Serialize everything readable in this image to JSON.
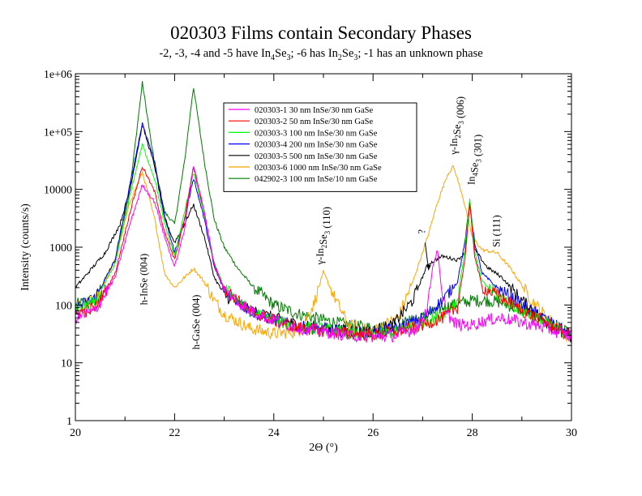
{
  "chart_data": {
    "type": "line",
    "title": "020303 Films contain Secondary Phases",
    "subtitle_parts": [
      {
        "t": "-2, -3, -4 and -5 have In"
      },
      {
        "t": "4",
        "sub": true
      },
      {
        "t": "Se"
      },
      {
        "t": "3",
        "sub": true
      },
      {
        "t": "; -6 has In"
      },
      {
        "t": "2",
        "sub": true
      },
      {
        "t": "Se"
      },
      {
        "t": "3",
        "sub": true
      },
      {
        "t": "; -1 has an unknown phase"
      }
    ],
    "xlabel": "2Θ (°)",
    "ylabel": "Intensity (counts/s)",
    "xlim": [
      20,
      30
    ],
    "ylim": [
      1,
      1000000
    ],
    "yscale": "log",
    "x_ticks": [
      "20",
      "22",
      "24",
      "26",
      "28",
      "30"
    ],
    "y_ticks": [
      "1",
      "10",
      "100",
      "1000",
      "10000",
      "1e+05",
      "1e+06"
    ],
    "grid": false,
    "legend_position": "top-center",
    "series": [
      {
        "name": "020303-1 30 nm InSe/30 nm GaSe",
        "color": "#ff00ff",
        "x": [
          20.0,
          20.4,
          20.8,
          21.1,
          21.35,
          21.6,
          21.8,
          22.0,
          22.2,
          22.38,
          22.6,
          22.8,
          23.0,
          23.5,
          24,
          24.5,
          25,
          25.5,
          26,
          26.5,
          26.9,
          27.1,
          27.2,
          27.3,
          27.4,
          27.6,
          27.8,
          28.0,
          28.3,
          28.6,
          29.0,
          29.5,
          30.0
        ],
        "y": [
          60,
          80,
          300,
          2500,
          12000,
          6000,
          1500,
          450,
          2000,
          27000,
          4000,
          500,
          180,
          80,
          55,
          40,
          35,
          30,
          28,
          30,
          40,
          90,
          450,
          900,
          120,
          50,
          45,
          45,
          55,
          60,
          50,
          40,
          28
        ]
      },
      {
        "name": "020303-2 50 nm InSe/30 nm GaSe",
        "color": "#ff0000",
        "x": [
          20.0,
          20.4,
          20.8,
          21.1,
          21.35,
          21.6,
          21.8,
          22.0,
          22.2,
          22.38,
          22.6,
          22.8,
          23.0,
          23.5,
          24,
          24.5,
          25,
          25.5,
          26,
          26.5,
          27.0,
          27.4,
          27.7,
          27.85,
          27.95,
          28.05,
          28.2,
          28.5,
          29.0,
          29.5,
          30.0
        ],
        "y": [
          70,
          90,
          350,
          4000,
          25000,
          9000,
          1800,
          600,
          3000,
          25000,
          4000,
          500,
          200,
          80,
          55,
          40,
          35,
          32,
          30,
          35,
          45,
          60,
          90,
          600,
          5500,
          700,
          200,
          150,
          80,
          50,
          30
        ]
      },
      {
        "name": "020303-3 100 nm InSe/30 nm GaSe",
        "color": "#00ff00",
        "x": [
          20.0,
          20.4,
          20.8,
          21.1,
          21.35,
          21.6,
          21.8,
          22.0,
          22.2,
          22.38,
          22.6,
          22.8,
          23.0,
          23.5,
          24,
          24.5,
          25,
          25.5,
          26,
          26.5,
          27.0,
          27.4,
          27.7,
          27.85,
          27.95,
          28.05,
          28.2,
          28.5,
          29.0,
          29.5,
          30.0
        ],
        "y": [
          80,
          110,
          500,
          8000,
          60000,
          15000,
          2500,
          700,
          4000,
          20000,
          3500,
          500,
          200,
          80,
          55,
          42,
          38,
          33,
          30,
          35,
          50,
          70,
          120,
          900,
          7000,
          800,
          250,
          150,
          80,
          50,
          28
        ]
      },
      {
        "name": "020303-4 200 nm InSe/30 nm GaSe",
        "color": "#0000ff",
        "x": [
          20.0,
          20.4,
          20.8,
          21.1,
          21.35,
          21.6,
          21.8,
          22.0,
          22.2,
          22.38,
          22.6,
          22.8,
          23.0,
          23.5,
          24,
          24.5,
          25,
          25.5,
          26,
          26.5,
          27.0,
          27.4,
          27.7,
          27.85,
          27.95,
          28.05,
          28.2,
          28.5,
          29.0,
          29.5,
          30.0
        ],
        "y": [
          90,
          130,
          600,
          12000,
          140000,
          30000,
          3500,
          800,
          3000,
          16000,
          3000,
          450,
          180,
          80,
          55,
          42,
          38,
          35,
          32,
          40,
          60,
          120,
          250,
          1200,
          6000,
          1200,
          350,
          200,
          100,
          55,
          30
        ]
      },
      {
        "name": "020303-5 500 nm InSe/30 nm GaSe",
        "color": "#000000",
        "x": [
          20.0,
          20.3,
          20.6,
          20.9,
          21.1,
          21.35,
          21.6,
          21.8,
          22.0,
          22.2,
          22.38,
          22.6,
          22.8,
          23.0,
          23.5,
          24,
          24.5,
          25,
          25.5,
          26,
          26.4,
          26.8,
          27.1,
          27.4,
          27.7,
          27.85,
          27.95,
          28.05,
          28.3,
          28.6,
          29.0,
          29.5,
          30.0
        ],
        "y": [
          200,
          400,
          800,
          2500,
          10000,
          130000,
          25000,
          3000,
          1200,
          2500,
          5500,
          1500,
          300,
          150,
          80,
          60,
          45,
          40,
          35,
          35,
          45,
          120,
          500,
          700,
          600,
          800,
          5500,
          900,
          450,
          300,
          120,
          50,
          25
        ]
      },
      {
        "name": "020303-6 1000 nm InSe/30 nm GaSe",
        "color": "#ffa500",
        "x": [
          20.0,
          20.4,
          20.8,
          21.1,
          21.35,
          21.6,
          21.8,
          22.0,
          22.2,
          22.38,
          22.6,
          22.8,
          23.0,
          23.5,
          24,
          24.5,
          24.8,
          25.0,
          25.2,
          25.5,
          26,
          26.5,
          26.8,
          27.1,
          27.3,
          27.5,
          27.62,
          27.8,
          28.0,
          28.2,
          28.5,
          28.8,
          29.2,
          29.6,
          30.0
        ],
        "y": [
          90,
          120,
          600,
          6000,
          20000,
          3000,
          350,
          200,
          300,
          430,
          250,
          120,
          70,
          40,
          32,
          35,
          100,
          370,
          150,
          45,
          35,
          60,
          250,
          1500,
          6000,
          18000,
          25000,
          8000,
          1500,
          900,
          800,
          400,
          120,
          50,
          25
        ]
      },
      {
        "name": "042902-3 100 nm InSe/10 nm GaSe",
        "color": "#007a00",
        "x": [
          20.0,
          20.4,
          20.8,
          21.1,
          21.35,
          21.6,
          21.8,
          22.0,
          22.2,
          22.38,
          22.6,
          22.8,
          23.0,
          23.3,
          23.6,
          24,
          24.5,
          25,
          25.5,
          26,
          26.5,
          27.0,
          27.4,
          27.8,
          28.0,
          28.3,
          28.6,
          29.0,
          29.5,
          30.0
        ],
        "y": [
          100,
          130,
          600,
          10000,
          700000,
          25000,
          4000,
          2500,
          30000,
          600000,
          30000,
          3000,
          1000,
          400,
          200,
          100,
          70,
          55,
          45,
          40,
          45,
          60,
          90,
          110,
          120,
          120,
          110,
          80,
          50,
          30
        ]
      }
    ],
    "annotations": [
      {
        "label": "h-InSe (004)",
        "x": 21.45,
        "y": 100
      },
      {
        "label": "h-GaSe (004)",
        "x": 22.5,
        "y": 17
      },
      {
        "label": "γ-In2Se3 (110)",
        "x": 25.0,
        "y": 500
      },
      {
        "label": "?",
        "x": 27.05,
        "y": 1700
      },
      {
        "label": "γ-In2Se3 (006)",
        "x": 27.7,
        "y": 40000
      },
      {
        "label": "In4Se3 (301)",
        "x": 28.05,
        "y": 12000
      },
      {
        "label": "Si (111)",
        "x": 28.55,
        "y": 1000
      }
    ]
  }
}
